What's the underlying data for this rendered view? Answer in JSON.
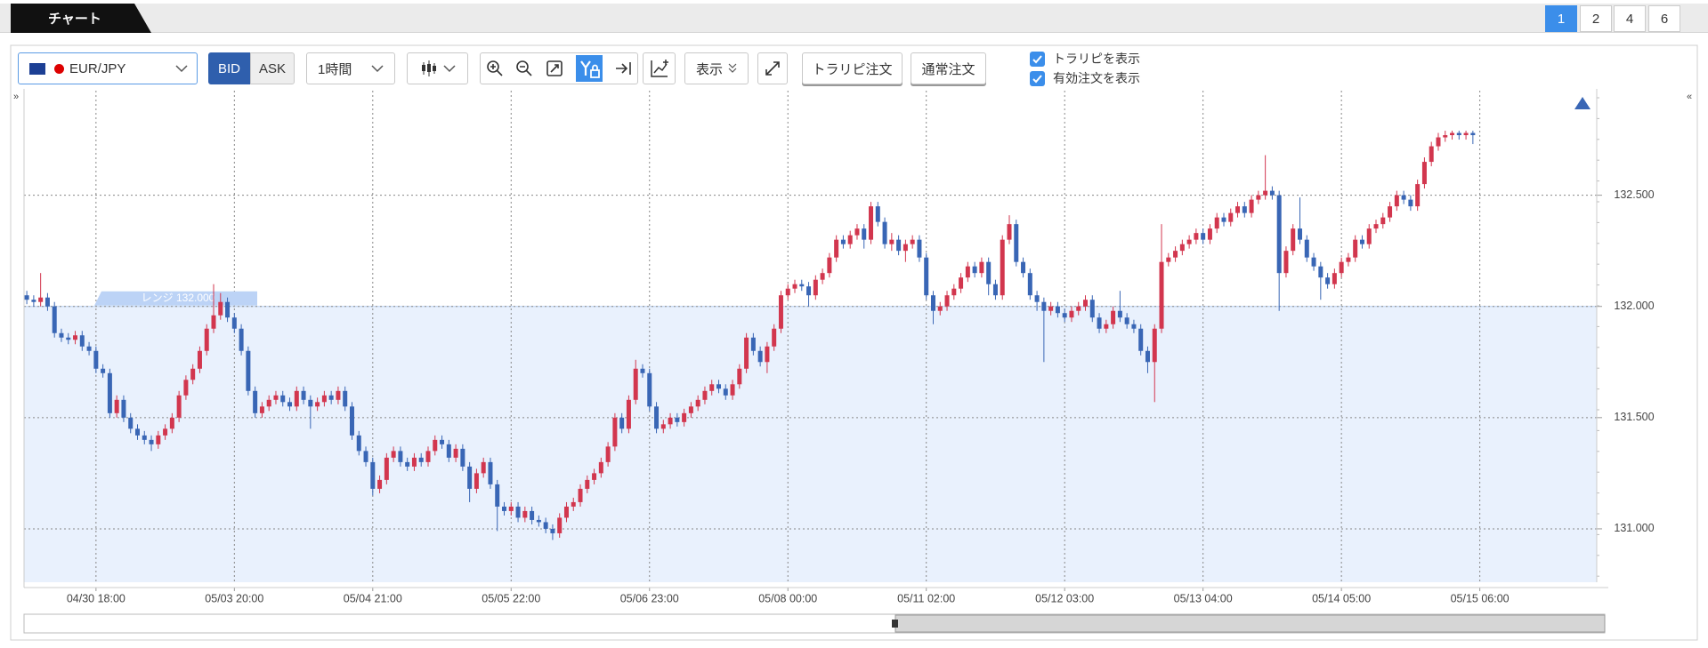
{
  "ui": {
    "tab_title": "チャート",
    "layout_buttons": [
      "1",
      "2",
      "4",
      "6"
    ],
    "symbol": "EUR/JPY",
    "price_sides": [
      "BID",
      "ASK"
    ],
    "timeframe": "1時間",
    "display_menu": "表示",
    "order_buttons": [
      "トラリピ注文",
      "通常注文"
    ],
    "checkboxes": [
      "トラリピを表示",
      "有効注文を表示"
    ]
  },
  "chart_data": {
    "type": "candlestick",
    "open": [
      132.05,
      132.03,
      132.02,
      132.04,
      132.0,
      131.88,
      131.86,
      131.85,
      131.87,
      131.82,
      131.8,
      131.72,
      131.7,
      131.52,
      131.58,
      131.5,
      131.45,
      131.42,
      131.4,
      131.38,
      131.42,
      131.45,
      131.5,
      131.6,
      131.67,
      131.72,
      131.8,
      131.9,
      131.96,
      132.02,
      131.95,
      131.9,
      131.8,
      131.62,
      131.52,
      131.55,
      131.58,
      131.6,
      131.57,
      131.55,
      131.62,
      131.58,
      131.55,
      131.57,
      131.6,
      131.58,
      131.62,
      131.55,
      131.42,
      131.35,
      131.3,
      131.18,
      131.22,
      131.32,
      131.35,
      131.3,
      131.28,
      131.32,
      131.3,
      131.35,
      131.4,
      131.38,
      131.32,
      131.36,
      131.28,
      131.18,
      131.25,
      131.3,
      131.2,
      131.1,
      131.08,
      131.1,
      131.05,
      131.08,
      131.04,
      131.03,
      131.0,
      130.98,
      131.05,
      131.1,
      131.12,
      131.18,
      131.22,
      131.25,
      131.3,
      131.37,
      131.5,
      131.45,
      131.58,
      131.72,
      131.7,
      131.55,
      131.45,
      131.47,
      131.5,
      131.48,
      131.52,
      131.55,
      131.58,
      131.62,
      131.65,
      131.63,
      131.6,
      131.65,
      131.72,
      131.86,
      131.8,
      131.75,
      131.82,
      131.9,
      132.05,
      132.08,
      132.1,
      132.09,
      132.05,
      132.12,
      132.15,
      132.22,
      132.3,
      132.28,
      132.32,
      132.35,
      132.3,
      132.45,
      132.38,
      132.28,
      132.3,
      132.25,
      132.28,
      132.3,
      132.22,
      132.05,
      131.98,
      132.0,
      132.05,
      132.08,
      132.13,
      132.18,
      132.15,
      132.2,
      132.1,
      132.05,
      132.3,
      132.37,
      132.2,
      132.15,
      132.05,
      132.02,
      131.98,
      132.0,
      131.97,
      131.95,
      131.98,
      132.0,
      132.03,
      131.95,
      131.9,
      131.92,
      131.98,
      131.95,
      131.92,
      131.9,
      131.8,
      131.75,
      131.9,
      132.2,
      132.22,
      132.25,
      132.28,
      132.3,
      132.33,
      132.3,
      132.35,
      132.4,
      132.38,
      132.42,
      132.45,
      132.42,
      132.48,
      132.5,
      132.52,
      132.5,
      132.15,
      132.25,
      132.35,
      132.3,
      132.22,
      132.18,
      132.13,
      132.1,
      132.15,
      132.2,
      132.22,
      132.3,
      132.28,
      132.35,
      132.37,
      132.4,
      132.45,
      132.5,
      132.48,
      132.45,
      132.55,
      132.65,
      132.72,
      132.76,
      132.77,
      132.78,
      132.77,
      132.78
    ],
    "high": [
      132.07,
      132.05,
      132.15,
      132.06,
      132.02,
      131.9,
      131.88,
      131.89,
      131.89,
      131.84,
      131.82,
      131.74,
      131.72,
      131.6,
      131.6,
      131.52,
      131.47,
      131.44,
      131.42,
      131.44,
      131.47,
      131.52,
      131.62,
      131.69,
      131.74,
      131.82,
      131.92,
      132.1,
      132.06,
      132.04,
      131.97,
      131.92,
      131.82,
      131.64,
      131.57,
      131.6,
      131.62,
      131.62,
      131.59,
      131.64,
      131.64,
      131.6,
      131.59,
      131.62,
      131.62,
      131.64,
      131.64,
      131.57,
      131.44,
      131.37,
      131.32,
      131.24,
      131.34,
      131.37,
      131.37,
      131.32,
      131.34,
      131.34,
      131.37,
      131.42,
      131.42,
      131.4,
      131.38,
      131.38,
      131.3,
      131.27,
      131.32,
      131.32,
      131.22,
      131.12,
      131.12,
      131.12,
      131.1,
      131.1,
      131.06,
      131.05,
      131.02,
      131.07,
      131.12,
      131.14,
      131.2,
      131.24,
      131.27,
      131.32,
      131.39,
      131.52,
      131.52,
      131.6,
      131.76,
      131.74,
      131.72,
      131.57,
      131.49,
      131.52,
      131.52,
      131.54,
      131.57,
      131.6,
      131.64,
      131.67,
      131.67,
      131.65,
      131.67,
      131.74,
      131.88,
      131.88,
      131.82,
      131.84,
      131.92,
      132.07,
      132.1,
      132.12,
      132.12,
      132.11,
      132.14,
      132.17,
      132.24,
      132.32,
      132.32,
      132.34,
      132.37,
      132.37,
      132.47,
      132.47,
      132.4,
      132.33,
      132.32,
      132.3,
      132.32,
      132.32,
      132.24,
      132.07,
      132.02,
      132.07,
      132.1,
      132.15,
      132.2,
      132.2,
      132.22,
      132.22,
      132.12,
      132.32,
      132.41,
      132.39,
      132.22,
      132.17,
      132.07,
      132.04,
      132.02,
      132.02,
      131.99,
      132.0,
      132.02,
      132.05,
      132.05,
      131.97,
      131.94,
      132.0,
      132.07,
      131.97,
      131.94,
      131.92,
      131.82,
      131.92,
      132.37,
      132.24,
      132.27,
      132.3,
      132.32,
      132.35,
      132.35,
      132.37,
      132.42,
      132.42,
      132.44,
      132.47,
      132.47,
      132.5,
      132.52,
      132.68,
      132.54,
      132.52,
      132.27,
      132.37,
      132.49,
      132.32,
      132.24,
      132.2,
      132.15,
      132.17,
      132.22,
      132.24,
      132.32,
      132.32,
      132.37,
      132.39,
      132.42,
      132.47,
      132.52,
      132.52,
      132.5,
      132.57,
      132.67,
      132.74,
      132.78,
      132.79,
      132.79,
      132.79,
      132.79,
      132.79
    ],
    "low": [
      132.01,
      132.0,
      132.0,
      131.98,
      131.86,
      131.84,
      131.83,
      131.83,
      131.8,
      131.78,
      131.7,
      131.68,
      131.5,
      131.5,
      131.48,
      131.43,
      131.4,
      131.38,
      131.35,
      131.36,
      131.4,
      131.43,
      131.48,
      131.58,
      131.65,
      131.7,
      131.78,
      131.88,
      131.94,
      131.93,
      131.88,
      131.78,
      131.6,
      131.5,
      131.5,
      131.53,
      131.56,
      131.55,
      131.53,
      131.53,
      131.56,
      131.45,
      131.53,
      131.55,
      131.56,
      131.56,
      131.53,
      131.4,
      131.33,
      131.28,
      131.15,
      131.16,
      131.2,
      131.3,
      131.28,
      131.26,
      131.26,
      131.28,
      131.28,
      131.33,
      131.36,
      131.3,
      131.3,
      131.26,
      131.12,
      131.16,
      131.23,
      131.18,
      130.99,
      131.06,
      131.06,
      131.03,
      131.03,
      131.02,
      131.01,
      130.98,
      130.95,
      130.96,
      131.03,
      131.08,
      131.1,
      131.16,
      131.2,
      131.23,
      131.28,
      131.35,
      131.43,
      131.43,
      131.56,
      131.68,
      131.53,
      131.43,
      131.43,
      131.45,
      131.46,
      131.46,
      131.5,
      131.53,
      131.56,
      131.6,
      131.61,
      131.58,
      131.58,
      131.63,
      131.7,
      131.78,
      131.73,
      131.7,
      131.8,
      131.88,
      132.03,
      132.06,
      132.07,
      132.0,
      132.03,
      132.1,
      132.13,
      132.2,
      132.26,
      132.26,
      132.3,
      132.26,
      132.28,
      132.36,
      132.26,
      132.25,
      132.23,
      132.2,
      132.26,
      132.2,
      132.03,
      131.92,
      131.96,
      131.98,
      132.03,
      132.06,
      132.11,
      132.13,
      132.13,
      132.05,
      132.03,
      132.03,
      132.28,
      132.18,
      132.13,
      132.03,
      131.98,
      131.75,
      131.96,
      131.95,
      131.93,
      131.93,
      131.96,
      131.98,
      131.93,
      131.88,
      131.88,
      131.9,
      131.93,
      131.9,
      131.88,
      131.78,
      131.7,
      131.57,
      131.88,
      132.18,
      132.2,
      132.23,
      132.26,
      132.28,
      132.28,
      132.28,
      132.33,
      132.36,
      132.36,
      132.4,
      132.4,
      132.4,
      132.46,
      132.48,
      132.48,
      131.98,
      132.13,
      132.23,
      132.28,
      132.2,
      132.16,
      132.03,
      132.08,
      132.08,
      132.13,
      132.18,
      132.2,
      132.26,
      132.26,
      132.33,
      132.35,
      132.38,
      132.43,
      132.46,
      132.43,
      132.43,
      132.53,
      132.63,
      132.7,
      132.74,
      132.75,
      132.75,
      132.75,
      132.73
    ],
    "close": [
      132.03,
      132.02,
      132.04,
      132.0,
      131.88,
      131.86,
      131.85,
      131.87,
      131.82,
      131.8,
      131.72,
      131.7,
      131.52,
      131.58,
      131.5,
      131.45,
      131.42,
      131.4,
      131.38,
      131.42,
      131.45,
      131.5,
      131.6,
      131.67,
      131.72,
      131.8,
      131.9,
      131.96,
      132.02,
      131.95,
      131.9,
      131.8,
      131.62,
      131.52,
      131.55,
      131.58,
      131.6,
      131.57,
      131.55,
      131.62,
      131.58,
      131.55,
      131.57,
      131.6,
      131.58,
      131.62,
      131.55,
      131.42,
      131.35,
      131.3,
      131.18,
      131.22,
      131.32,
      131.35,
      131.3,
      131.28,
      131.32,
      131.3,
      131.35,
      131.4,
      131.38,
      131.32,
      131.36,
      131.28,
      131.18,
      131.25,
      131.3,
      131.2,
      131.1,
      131.08,
      131.1,
      131.05,
      131.08,
      131.04,
      131.03,
      131.0,
      130.98,
      131.05,
      131.1,
      131.12,
      131.18,
      131.22,
      131.25,
      131.3,
      131.37,
      131.5,
      131.45,
      131.58,
      131.72,
      131.7,
      131.55,
      131.45,
      131.47,
      131.5,
      131.48,
      131.52,
      131.55,
      131.58,
      131.62,
      131.65,
      131.63,
      131.6,
      131.65,
      131.72,
      131.86,
      131.8,
      131.75,
      131.82,
      131.9,
      132.05,
      132.08,
      132.1,
      132.09,
      132.05,
      132.12,
      132.15,
      132.22,
      132.3,
      132.28,
      132.32,
      132.35,
      132.3,
      132.45,
      132.38,
      132.28,
      132.3,
      132.25,
      132.28,
      132.3,
      132.22,
      132.05,
      131.98,
      132.0,
      132.05,
      132.08,
      132.13,
      132.18,
      132.15,
      132.2,
      132.1,
      132.05,
      132.3,
      132.37,
      132.2,
      132.15,
      132.05,
      132.02,
      131.98,
      132.0,
      131.97,
      131.95,
      131.98,
      132.0,
      132.03,
      131.95,
      131.9,
      131.92,
      131.98,
      131.95,
      131.92,
      131.9,
      131.8,
      131.75,
      131.9,
      132.2,
      132.22,
      132.25,
      132.28,
      132.3,
      132.33,
      132.3,
      132.35,
      132.4,
      132.38,
      132.42,
      132.45,
      132.42,
      132.48,
      132.5,
      132.52,
      132.5,
      132.15,
      132.25,
      132.35,
      132.3,
      132.22,
      132.18,
      132.13,
      132.1,
      132.15,
      132.2,
      132.22,
      132.3,
      132.28,
      132.35,
      132.37,
      132.4,
      132.45,
      132.5,
      132.48,
      132.45,
      132.55,
      132.65,
      132.72,
      132.76,
      132.77,
      132.78,
      132.77,
      132.78,
      132.77
    ],
    "up_color": "#d2364e",
    "down_color": "#3966b5",
    "xlim": [
      -0.4,
      226.9
    ],
    "xticks": [
      {
        "value": 10,
        "label": "04/30 18:00"
      },
      {
        "value": 30,
        "label": "05/03 20:00"
      },
      {
        "value": 50,
        "label": "05/04 21:00"
      },
      {
        "value": 70,
        "label": "05/05 22:00"
      },
      {
        "value": 90,
        "label": "05/06 23:00"
      },
      {
        "value": 110,
        "label": "05/08 00:00"
      },
      {
        "value": 130,
        "label": "05/11 02:00"
      },
      {
        "value": 150,
        "label": "05/12 03:00"
      },
      {
        "value": 170,
        "label": "05/13 04:00"
      },
      {
        "value": 190,
        "label": "05/14 05:00"
      },
      {
        "value": 210,
        "label": "05/15 06:00"
      }
    ],
    "ylim": [
      130.76,
      132.97
    ],
    "yticks": [
      {
        "value": 131,
        "label": "131.000"
      },
      {
        "value": 131.5,
        "label": "131.500"
      },
      {
        "value": 132,
        "label": "132.000"
      },
      {
        "value": 132.5,
        "label": "132.500"
      }
    ],
    "grid": true,
    "range_label": "レンジ 132.000",
    "range_value": 132
  }
}
